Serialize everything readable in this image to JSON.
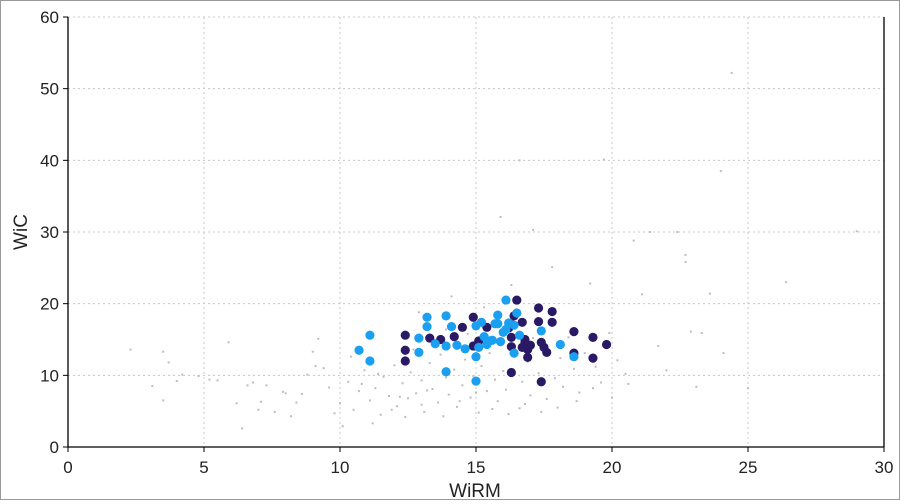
{
  "chart_data": {
    "type": "scatter",
    "title": "",
    "xlabel": "WiRM",
    "ylabel": "WiC",
    "xlim": [
      0,
      30
    ],
    "ylim": [
      0,
      60
    ],
    "x_ticks": [
      "0",
      "5",
      "10",
      "15",
      "20",
      "25",
      "30"
    ],
    "y_ticks": [
      "0",
      "10",
      "20",
      "30",
      "40",
      "50",
      "60"
    ],
    "grid": true,
    "legend": "none",
    "colors": {
      "background": "#bdbdbd",
      "dark": "#2a1a66",
      "light": "#1b9ff0",
      "grid": "#c8c8c8",
      "axis": "#000000"
    },
    "series": [
      {
        "values": [
          [
            2.3,
            13.6
          ],
          [
            3.1,
            8.5
          ],
          [
            3.5,
            13.3
          ],
          [
            3.7,
            11.8
          ],
          [
            4.2,
            10.1
          ],
          [
            4.8,
            9.9
          ],
          [
            5.2,
            9.4
          ],
          [
            3.5,
            6.5
          ],
          [
            4.0,
            9.2
          ],
          [
            5.9,
            14.6
          ],
          [
            6.4,
            2.6
          ],
          [
            6.8,
            9.0
          ],
          [
            7.0,
            5.2
          ],
          [
            7.1,
            6.3
          ],
          [
            7.3,
            8.6
          ],
          [
            7.6,
            4.9
          ],
          [
            7.9,
            7.7
          ],
          [
            8.2,
            4.3
          ],
          [
            8.4,
            6.2
          ],
          [
            8.6,
            7.4
          ],
          [
            8.8,
            10.1
          ],
          [
            9.0,
            13.3
          ],
          [
            9.2,
            15.1
          ],
          [
            9.4,
            11.0
          ],
          [
            9.6,
            8.3
          ],
          [
            9.8,
            4.7
          ],
          [
            10.0,
            6.1
          ],
          [
            10.1,
            2.9
          ],
          [
            10.3,
            9.1
          ],
          [
            10.5,
            5.2
          ],
          [
            10.7,
            7.8
          ],
          [
            10.9,
            10.7
          ],
          [
            11.1,
            6.5
          ],
          [
            11.3,
            8.2
          ],
          [
            11.5,
            4.5
          ],
          [
            11.6,
            9.8
          ],
          [
            11.8,
            7.1
          ],
          [
            12.0,
            11.4
          ],
          [
            12.1,
            5.7
          ],
          [
            12.3,
            8.9
          ],
          [
            12.5,
            6.8
          ],
          [
            12.6,
            10.4
          ],
          [
            12.8,
            7.5
          ],
          [
            13.0,
            9.3
          ],
          [
            13.1,
            4.9
          ],
          [
            13.3,
            11.7
          ],
          [
            13.4,
            8.1
          ],
          [
            13.6,
            6.2
          ],
          [
            13.7,
            12.9
          ],
          [
            13.9,
            9.7
          ],
          [
            14.0,
            7.3
          ],
          [
            14.2,
            10.8
          ],
          [
            14.3,
            5.6
          ],
          [
            14.5,
            8.6
          ],
          [
            14.6,
            12.2
          ],
          [
            14.8,
            6.9
          ],
          [
            14.9,
            9.9
          ],
          [
            15.1,
            4.8
          ],
          [
            15.2,
            11.3
          ],
          [
            15.4,
            7.8
          ],
          [
            15.5,
            13.1
          ],
          [
            15.7,
            9.4
          ],
          [
            15.8,
            6.4
          ],
          [
            16.0,
            10.6
          ],
          [
            16.1,
            8.0
          ],
          [
            16.3,
            22.6
          ],
          [
            16.4,
            14.2
          ],
          [
            16.6,
            5.4
          ],
          [
            16.7,
            9.1
          ],
          [
            16.9,
            11.9
          ],
          [
            17.0,
            7.2
          ],
          [
            17.2,
            19.6
          ],
          [
            17.3,
            10.3
          ],
          [
            17.5,
            13.8
          ],
          [
            17.6,
            6.7
          ],
          [
            17.8,
            25.1
          ],
          [
            17.9,
            9.6
          ],
          [
            18.1,
            12.4
          ],
          [
            18.2,
            8.4
          ],
          [
            18.4,
            15.3
          ],
          [
            18.6,
            10.9
          ],
          [
            18.8,
            7.6
          ],
          [
            19.0,
            13.1
          ],
          [
            19.2,
            22.8
          ],
          [
            19.4,
            11.2
          ],
          [
            19.6,
            9.0
          ],
          [
            19.9,
            15.9
          ],
          [
            20.2,
            12.1
          ],
          [
            20.5,
            10.2
          ],
          [
            20.8,
            28.8
          ],
          [
            21.1,
            21.3
          ],
          [
            21.4,
            30.0
          ],
          [
            21.7,
            14.1
          ],
          [
            22.0,
            10.7
          ],
          [
            22.4,
            30.0
          ],
          [
            22.7,
            26.8
          ],
          [
            22.7,
            25.8
          ],
          [
            22.9,
            16.1
          ],
          [
            23.1,
            8.4
          ],
          [
            23.3,
            15.9
          ],
          [
            23.6,
            21.4
          ],
          [
            24.0,
            38.5
          ],
          [
            24.4,
            52.2
          ],
          [
            24.1,
            13.1
          ],
          [
            25.0,
            8.2
          ],
          [
            26.4,
            23.0
          ],
          [
            29.0,
            30.1
          ],
          [
            11.2,
            3.3
          ],
          [
            11.9,
            5.2
          ],
          [
            12.4,
            4.2
          ],
          [
            13.2,
            7.9
          ],
          [
            13.8,
            4.3
          ],
          [
            14.4,
            6.4
          ],
          [
            15.0,
            7.6
          ],
          [
            15.6,
            5.3
          ],
          [
            16.2,
            4.6
          ],
          [
            16.8,
            6.0
          ],
          [
            17.4,
            4.9
          ],
          [
            18.0,
            5.5
          ],
          [
            18.7,
            6.4
          ],
          [
            19.3,
            8.2
          ],
          [
            20.0,
            6.9
          ],
          [
            20.6,
            8.8
          ],
          [
            13.5,
            14.9
          ],
          [
            14.7,
            15.8
          ],
          [
            15.3,
            19.5
          ],
          [
            16.5,
            18.7
          ],
          [
            17.1,
            15.2
          ],
          [
            17.7,
            17.6
          ],
          [
            12.7,
            13.6
          ],
          [
            13.9,
            16.4
          ],
          [
            15.9,
            32.1
          ],
          [
            17.1,
            30.3
          ],
          [
            16.6,
            40.0
          ],
          [
            19.7,
            40.1
          ],
          [
            14.1,
            21.0
          ],
          [
            12.9,
            18.8
          ],
          [
            10.4,
            12.6
          ],
          [
            9.1,
            11.3
          ],
          [
            8.0,
            7.5
          ],
          [
            6.6,
            8.6
          ],
          [
            6.2,
            6.1
          ],
          [
            5.5,
            9.3
          ],
          [
            10.8,
            8.8
          ],
          [
            11.4,
            10.2
          ],
          [
            12.2,
            7.0
          ],
          [
            13.0,
            5.9
          ]
        ]
      },
      {
        "values": [
          [
            12.4,
            15.6
          ],
          [
            12.4,
            13.5
          ],
          [
            12.4,
            12.0
          ],
          [
            13.3,
            15.2
          ],
          [
            13.7,
            15.0
          ],
          [
            14.2,
            15.4
          ],
          [
            14.5,
            16.7
          ],
          [
            14.9,
            18.1
          ],
          [
            14.9,
            14.1
          ],
          [
            15.1,
            14.8
          ],
          [
            15.4,
            16.7
          ],
          [
            16.3,
            17.1
          ],
          [
            16.3,
            15.3
          ],
          [
            16.3,
            14.0
          ],
          [
            16.4,
            18.3
          ],
          [
            16.5,
            20.5
          ],
          [
            16.7,
            17.4
          ],
          [
            16.8,
            15.0
          ],
          [
            16.8,
            14.6
          ],
          [
            16.9,
            13.6
          ],
          [
            16.9,
            12.5
          ],
          [
            16.3,
            10.4
          ],
          [
            17.3,
            19.4
          ],
          [
            17.3,
            17.5
          ],
          [
            17.4,
            14.6
          ],
          [
            17.5,
            13.9
          ],
          [
            17.6,
            13.2
          ],
          [
            17.8,
            18.9
          ],
          [
            17.8,
            17.4
          ],
          [
            17.4,
            9.1
          ],
          [
            18.6,
            16.1
          ],
          [
            18.6,
            13.1
          ],
          [
            19.3,
            15.3
          ],
          [
            19.3,
            12.4
          ],
          [
            19.8,
            14.3
          ],
          [
            16.7,
            13.9
          ],
          [
            16.2,
            16.6
          ],
          [
            17.0,
            14.2
          ]
        ]
      },
      {
        "values": [
          [
            10.7,
            13.5
          ],
          [
            11.1,
            15.6
          ],
          [
            11.1,
            12.0
          ],
          [
            12.9,
            15.2
          ],
          [
            12.9,
            13.2
          ],
          [
            13.2,
            18.1
          ],
          [
            13.2,
            16.8
          ],
          [
            13.5,
            14.4
          ],
          [
            13.9,
            18.3
          ],
          [
            13.9,
            14.1
          ],
          [
            13.9,
            10.5
          ],
          [
            14.1,
            16.8
          ],
          [
            14.3,
            14.2
          ],
          [
            14.6,
            13.7
          ],
          [
            15.0,
            16.9
          ],
          [
            15.0,
            12.6
          ],
          [
            15.0,
            9.2
          ],
          [
            15.2,
            17.4
          ],
          [
            15.3,
            15.4
          ],
          [
            15.4,
            14.3
          ],
          [
            15.5,
            14.8
          ],
          [
            15.6,
            14.9
          ],
          [
            15.7,
            17.2
          ],
          [
            15.8,
            18.4
          ],
          [
            15.8,
            17.2
          ],
          [
            16.1,
            20.5
          ],
          [
            16.1,
            16.4
          ],
          [
            16.2,
            17.3
          ],
          [
            16.4,
            13.1
          ],
          [
            16.4,
            17.0
          ],
          [
            16.5,
            18.7
          ],
          [
            16.6,
            15.6
          ],
          [
            17.4,
            16.2
          ],
          [
            18.1,
            14.3
          ],
          [
            18.6,
            12.6
          ],
          [
            15.1,
            13.9
          ],
          [
            15.9,
            14.7
          ],
          [
            16.0,
            16.0
          ]
        ]
      }
    ]
  }
}
